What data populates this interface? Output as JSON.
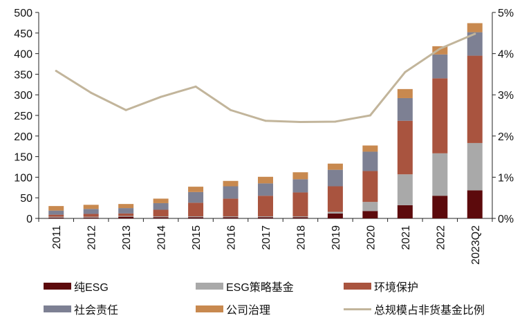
{
  "chart_data": {
    "type": "bar",
    "stacked": true,
    "categories": [
      "2011",
      "2012",
      "2013",
      "2014",
      "2015",
      "2016",
      "2017",
      "2018",
      "2019",
      "2020",
      "2021",
      "2022",
      "2023Q2"
    ],
    "series": [
      {
        "name": "纯ESG",
        "color": "#5c0a0c",
        "values": [
          2,
          2,
          4,
          3,
          3,
          3,
          3,
          3,
          12,
          18,
          32,
          55,
          68
        ]
      },
      {
        "name": "ESG策略基金",
        "color": "#a9a9a9",
        "values": [
          2,
          2,
          2,
          2,
          2,
          2,
          2,
          2,
          4,
          22,
          75,
          103,
          115
        ]
      },
      {
        "name": "环境保护",
        "color": "#a9543f",
        "values": [
          5,
          7,
          6,
          16,
          33,
          43,
          50,
          58,
          62,
          75,
          130,
          182,
          212
        ]
      },
      {
        "name": "社会责任",
        "color": "#7d8093",
        "values": [
          10,
          12,
          13,
          16,
          26,
          30,
          30,
          32,
          40,
          47,
          55,
          58,
          57
        ]
      },
      {
        "name": "公司治理",
        "color": "#c8894f",
        "values": [
          11,
          10,
          10,
          11,
          13,
          13,
          16,
          17,
          15,
          15,
          22,
          20,
          22
        ]
      }
    ],
    "line_series": {
      "name": "总规模占非货基金比例",
      "color": "#c2b59b",
      "axis": "right",
      "values": [
        3.58,
        3.05,
        2.63,
        2.95,
        3.2,
        2.63,
        2.37,
        2.34,
        2.35,
        2.5,
        3.55,
        4.12,
        4.48
      ]
    },
    "y_left": {
      "min": 0,
      "max": 500,
      "step": 50,
      "tick_labels": [
        "0",
        "50",
        "100",
        "150",
        "200",
        "250",
        "300",
        "350",
        "400",
        "450",
        "500"
      ]
    },
    "y_right": {
      "min": 0,
      "max": 5,
      "step": 1,
      "tick_labels": [
        "0%",
        "1%",
        "2%",
        "3%",
        "4%",
        "5%"
      ]
    },
    "title": "",
    "xlabel": "",
    "ylabel": "",
    "legend": [
      {
        "label": "纯ESG",
        "kind": "bar",
        "color": "#5c0a0c"
      },
      {
        "label": "ESG策略基金",
        "kind": "bar",
        "color": "#a9a9a9"
      },
      {
        "label": "环境保护",
        "kind": "bar",
        "color": "#a9543f"
      },
      {
        "label": "社会责任",
        "kind": "bar",
        "color": "#7d8093"
      },
      {
        "label": "公司治理",
        "kind": "bar",
        "color": "#c8894f"
      },
      {
        "label": "总规模占非货基金比例",
        "kind": "line",
        "color": "#c2b59b"
      }
    ],
    "legend_position": "bottom"
  }
}
